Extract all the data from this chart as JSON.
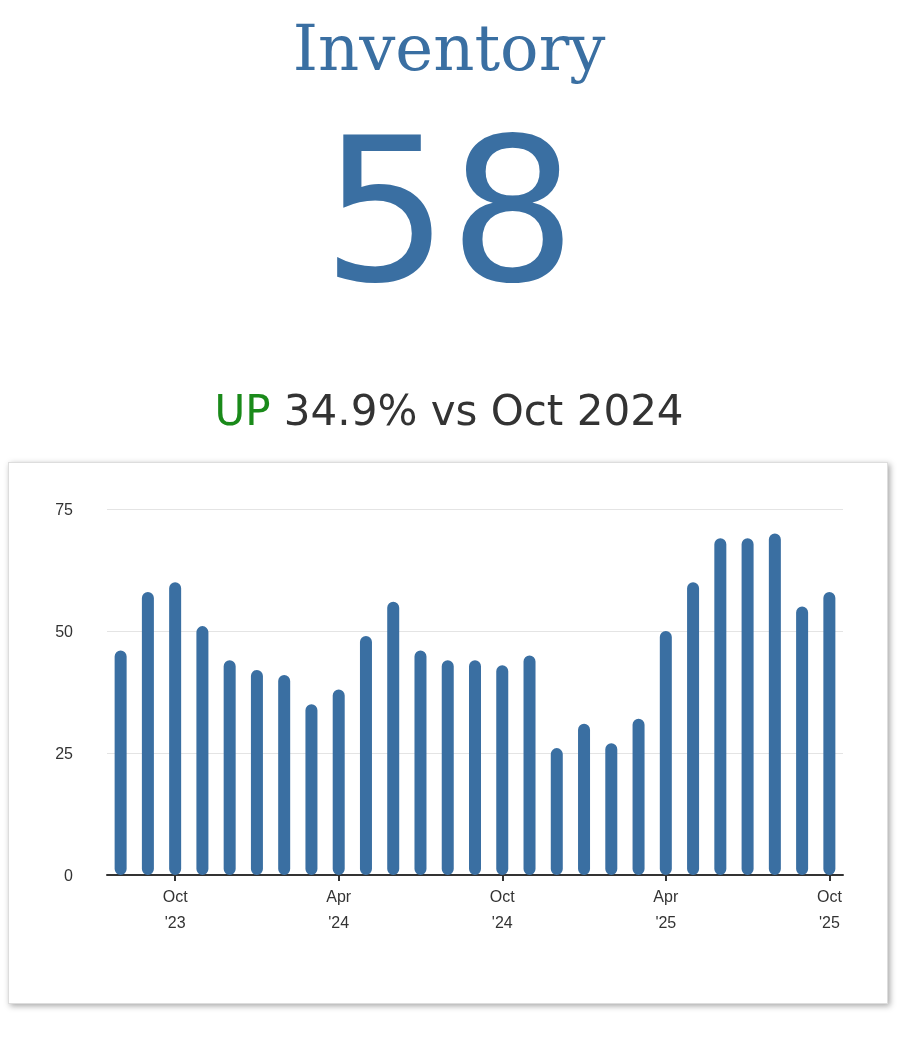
{
  "chart_data": {
    "type": "bar",
    "title": "Inventory",
    "annotations": [
      "58",
      "UP",
      "34.9% vs Oct 2024"
    ],
    "categories": [
      null,
      null,
      "Oct '23",
      null,
      null,
      null,
      null,
      null,
      "Apr '24",
      null,
      null,
      null,
      null,
      null,
      "Oct '24",
      null,
      null,
      null,
      null,
      null,
      "Apr '25",
      null,
      null,
      null,
      null,
      null,
      "Oct '25"
    ],
    "values": [
      46,
      58,
      60,
      51,
      44,
      42,
      41,
      35,
      38,
      49,
      56,
      46,
      44,
      44,
      43,
      45,
      26,
      31,
      27,
      32,
      50,
      60,
      69,
      69,
      70,
      55,
      58
    ],
    "color": "#3a6fa2",
    "ylim": [
      0,
      75
    ],
    "yticks": [
      0,
      25,
      50,
      75
    ],
    "grid": "y"
  }
}
